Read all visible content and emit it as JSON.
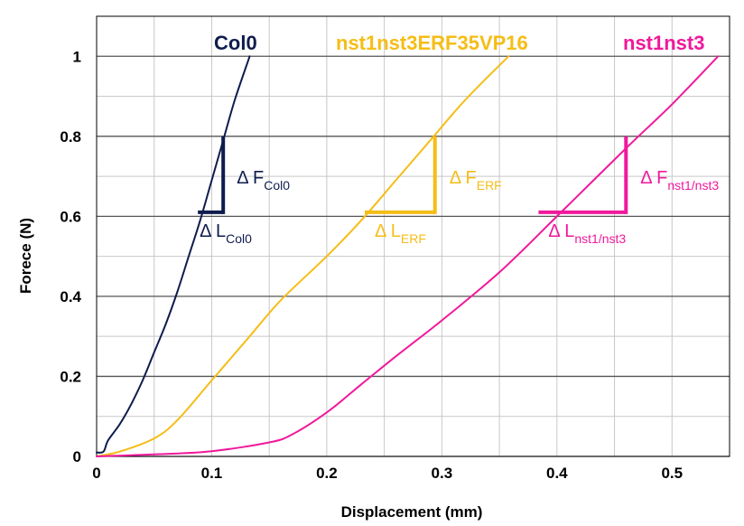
{
  "chart_data": {
    "type": "line",
    "xlabel": "Displacement (mm)",
    "ylabel": "Forece (N)",
    "xlim": [
      0,
      0.55
    ],
    "ylim": [
      0,
      1.1
    ],
    "xticks": [
      0,
      0.1,
      0.2,
      0.3,
      0.4,
      0.5
    ],
    "xtick_labels": [
      "0",
      "0.1",
      "0.2",
      "0.3",
      "0.4",
      "0.5"
    ],
    "yticks": [
      0,
      0.2,
      0.4,
      0.6,
      0.8,
      1.0
    ],
    "ytick_labels": [
      "0",
      "0.2",
      "0.4",
      "0.6",
      "0.8",
      "1"
    ],
    "grid": true,
    "series": [
      {
        "name": "Col0",
        "color": "#0f1c4d",
        "points": [
          [
            0.0,
            0.01
          ],
          [
            0.006,
            0.012
          ],
          [
            0.01,
            0.04
          ],
          [
            0.02,
            0.08
          ],
          [
            0.03,
            0.13
          ],
          [
            0.04,
            0.19
          ],
          [
            0.05,
            0.26
          ],
          [
            0.06,
            0.33
          ],
          [
            0.07,
            0.41
          ],
          [
            0.08,
            0.5
          ],
          [
            0.09,
            0.59
          ],
          [
            0.1,
            0.69
          ],
          [
            0.11,
            0.79
          ],
          [
            0.12,
            0.89
          ],
          [
            0.133,
            1.0
          ]
        ]
      },
      {
        "name": "nst1nst3ERF35VP16",
        "color": "#f5bd16",
        "points": [
          [
            0.0,
            0.0
          ],
          [
            0.02,
            0.012
          ],
          [
            0.05,
            0.045
          ],
          [
            0.07,
            0.09
          ],
          [
            0.1,
            0.19
          ],
          [
            0.13,
            0.29
          ],
          [
            0.16,
            0.39
          ],
          [
            0.2,
            0.5
          ],
          [
            0.23,
            0.59
          ],
          [
            0.26,
            0.69
          ],
          [
            0.29,
            0.79
          ],
          [
            0.32,
            0.89
          ],
          [
            0.358,
            1.0
          ]
        ]
      },
      {
        "name": "nst1nst3",
        "color": "#f0199c",
        "points": [
          [
            0.0,
            0.0
          ],
          [
            0.05,
            0.005
          ],
          [
            0.1,
            0.013
          ],
          [
            0.15,
            0.035
          ],
          [
            0.17,
            0.055
          ],
          [
            0.2,
            0.11
          ],
          [
            0.23,
            0.18
          ],
          [
            0.26,
            0.25
          ],
          [
            0.3,
            0.34
          ],
          [
            0.35,
            0.46
          ],
          [
            0.4,
            0.6
          ],
          [
            0.46,
            0.77
          ],
          [
            0.5,
            0.88
          ],
          [
            0.54,
            1.0
          ]
        ]
      }
    ],
    "annotations": [
      {
        "series": "Col0",
        "color": "#0f1c4d",
        "triangle": {
          "x0": 0.088,
          "x1": 0.11,
          "y0": 0.61,
          "y1": 0.8
        },
        "dF": {
          "prefix": "Δ F",
          "sub": "Col0"
        },
        "dL": {
          "prefix": "Δ L",
          "sub": "Col0"
        }
      },
      {
        "series": "nst1nst3ERF35VP16",
        "color": "#f5bd16",
        "triangle": {
          "x0": 0.233,
          "x1": 0.294,
          "y0": 0.61,
          "y1": 0.8
        },
        "dF": {
          "prefix": "Δ F",
          "sub": "ERF"
        },
        "dL": {
          "prefix": "Δ L",
          "sub": "ERF"
        }
      },
      {
        "series": "nst1nst3",
        "color": "#f0199c",
        "triangle": {
          "x0": 0.384,
          "x1": 0.46,
          "y0": 0.61,
          "y1": 0.8
        },
        "dF": {
          "prefix": "Δ F",
          "sub": "nst1/nst3"
        },
        "dL": {
          "prefix": "Δ L",
          "sub": "nst1/nst3"
        }
      }
    ]
  }
}
